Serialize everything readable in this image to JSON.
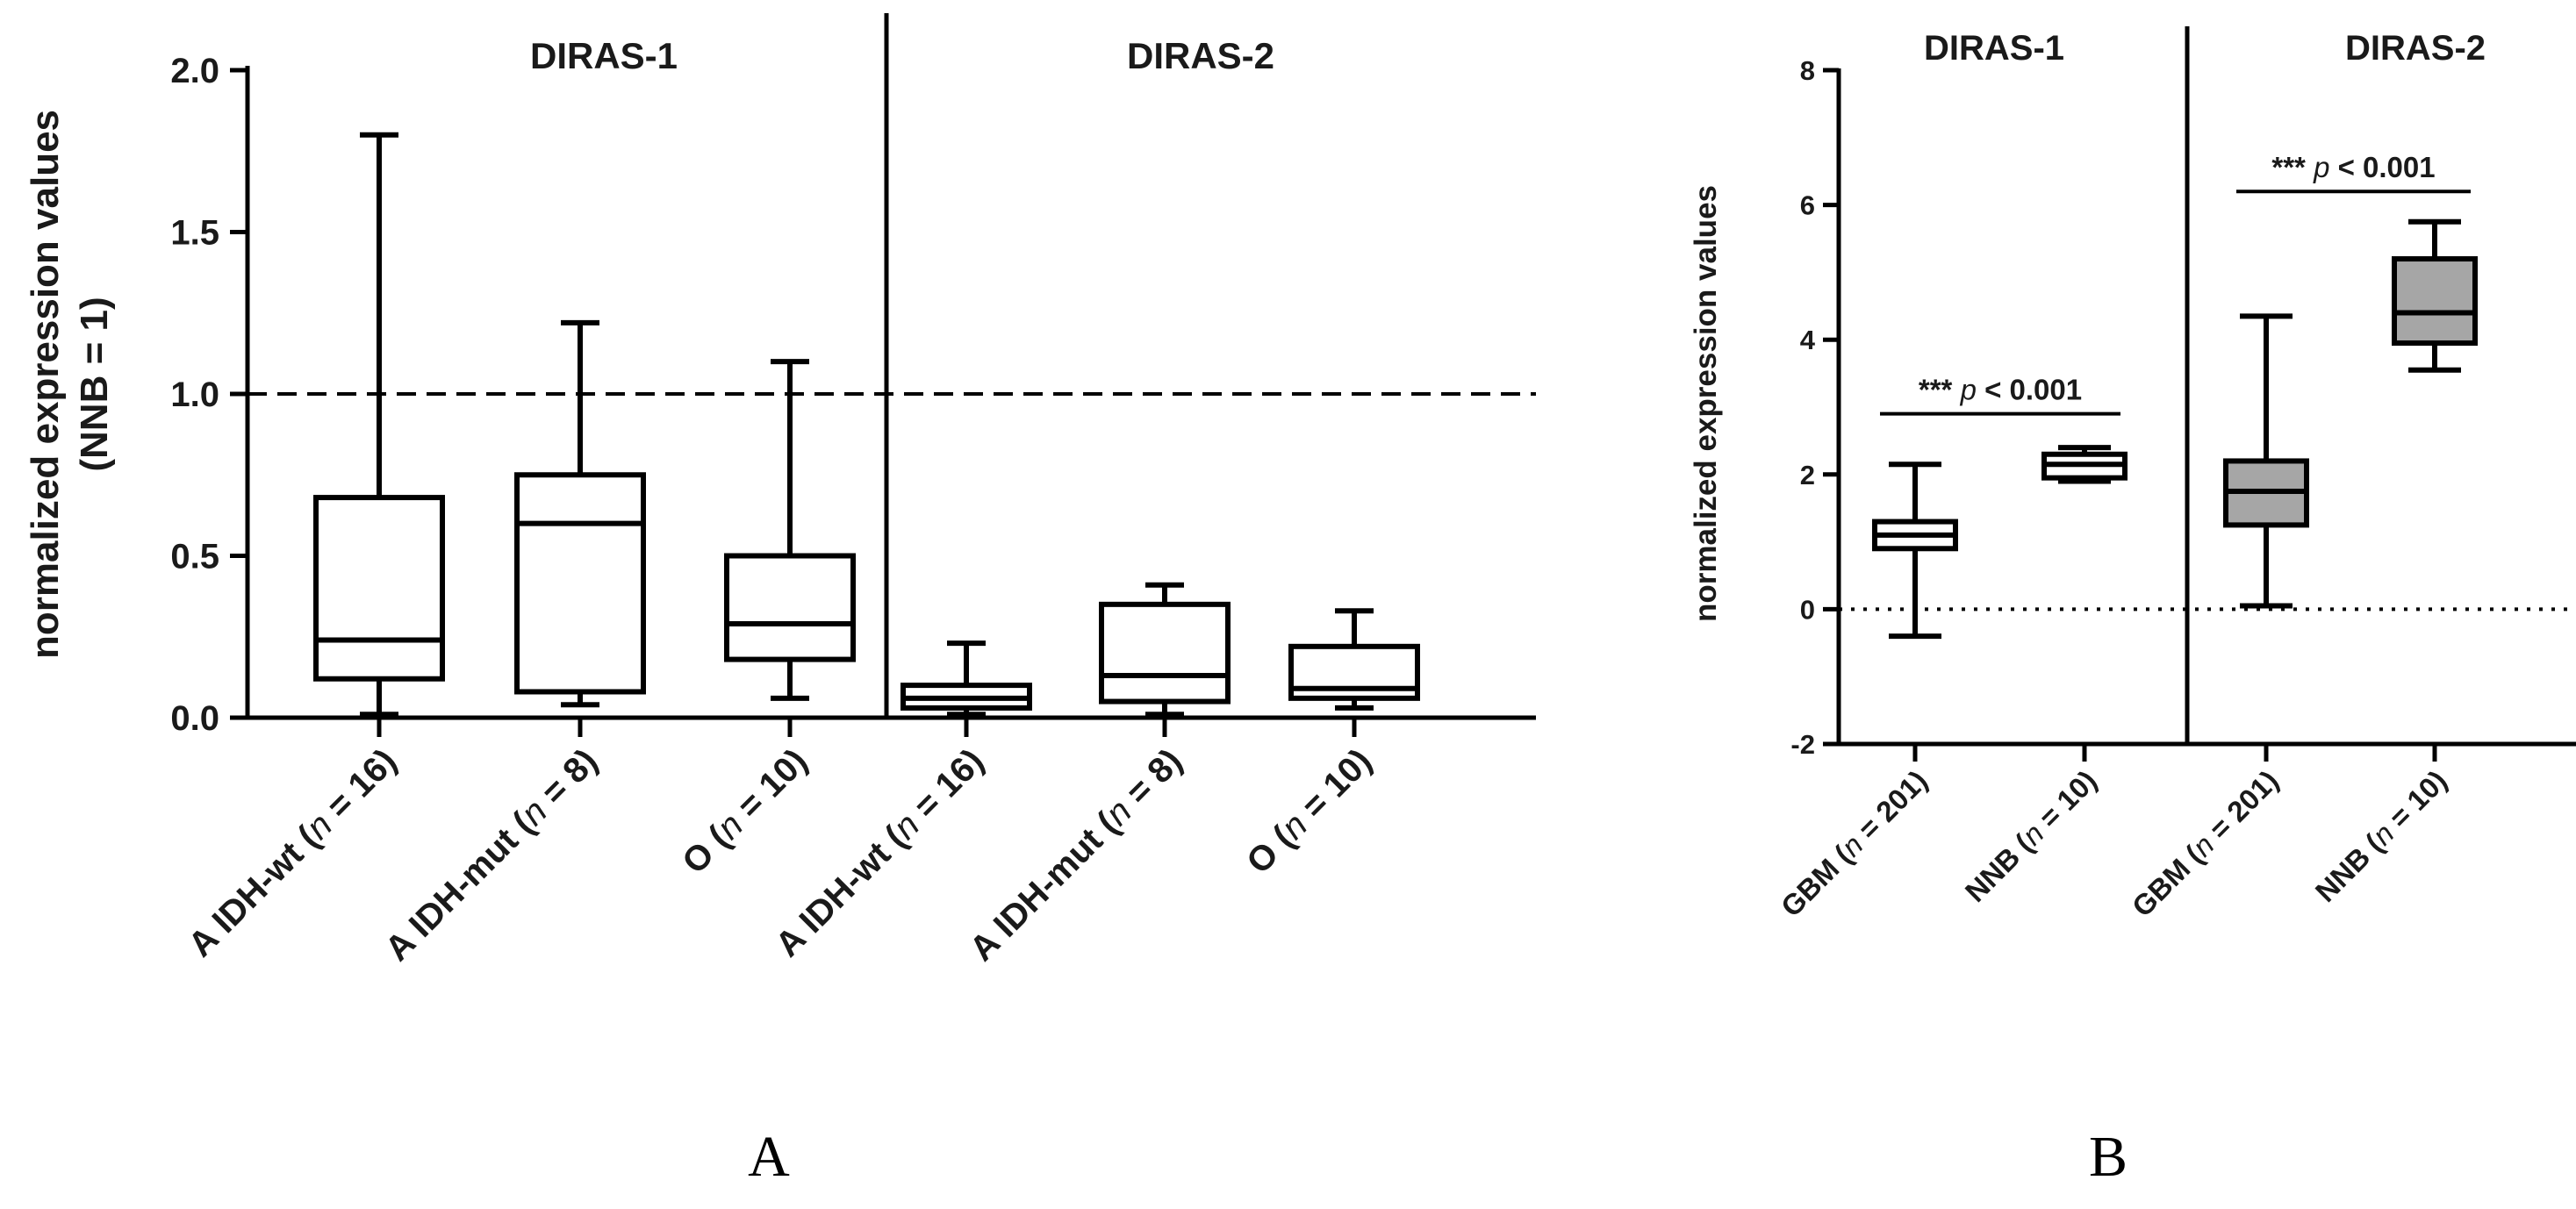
{
  "chart_data": [
    {
      "type": "box",
      "panel": "A",
      "ylabel_line1": "normalized expression values",
      "ylabel_line2": "(NNB = 1)",
      "ylim": [
        0,
        2.0
      ],
      "yticks": [
        "0.0",
        "0.5",
        "1.0",
        "1.5",
        "2.0"
      ],
      "ytick_values": [
        0,
        0.5,
        1.0,
        1.5,
        2.0
      ],
      "reference_line": 1.0,
      "groups": [
        "DIRAS-1",
        "DIRAS-2"
      ],
      "categories": [
        {
          "pre": "A IDH-wt (",
          "n": "n",
          "post": " = 16)"
        },
        {
          "pre": "A IDH-mut (",
          "n": "n",
          "post": " = 8)"
        },
        {
          "pre": "O (",
          "n": "n",
          "post": " = 10)"
        },
        {
          "pre": "A IDH-wt (",
          "n": "n",
          "post": " = 16)"
        },
        {
          "pre": "A IDH-mut (",
          "n": "n",
          "post": " = 8)"
        },
        {
          "pre": "O (",
          "n": "n",
          "post": " = 10)"
        }
      ],
      "boxes": [
        {
          "group": "DIRAS-1",
          "min": 0.01,
          "q1": 0.12,
          "median": 0.24,
          "q3": 0.68,
          "max": 1.8
        },
        {
          "group": "DIRAS-1",
          "min": 0.04,
          "q1": 0.08,
          "median": 0.6,
          "q3": 0.75,
          "max": 1.22
        },
        {
          "group": "DIRAS-1",
          "min": 0.06,
          "q1": 0.18,
          "median": 0.29,
          "q3": 0.5,
          "max": 1.1
        },
        {
          "group": "DIRAS-2",
          "min": 0.01,
          "q1": 0.03,
          "median": 0.06,
          "q3": 0.1,
          "max": 0.23
        },
        {
          "group": "DIRAS-2",
          "min": 0.01,
          "q1": 0.05,
          "median": 0.13,
          "q3": 0.35,
          "max": 0.41
        },
        {
          "group": "DIRAS-2",
          "min": 0.03,
          "q1": 0.06,
          "median": 0.09,
          "q3": 0.22,
          "max": 0.33
        }
      ]
    },
    {
      "type": "box",
      "panel": "B",
      "ylabel": "normalized expression values",
      "ylim": [
        -2,
        8
      ],
      "yticks": [
        "-2",
        "0",
        "2",
        "4",
        "6",
        "8"
      ],
      "ytick_values": [
        -2,
        0,
        2,
        4,
        6,
        8
      ],
      "reference_line": 0,
      "groups": [
        "DIRAS-1",
        "DIRAS-2"
      ],
      "categories": [
        {
          "pre": "GBM (",
          "n": "n",
          "post": " = 201)"
        },
        {
          "pre": "NNB (",
          "n": "n",
          "post": " = 10)"
        },
        {
          "pre": "GBM (",
          "n": "n",
          "post": " = 201)"
        },
        {
          "pre": "NNB (",
          "n": "n",
          "post": " = 10)"
        }
      ],
      "boxes": [
        {
          "group": "DIRAS-1",
          "min": -0.4,
          "q1": 0.9,
          "median": 1.1,
          "q3": 1.3,
          "max": 2.15,
          "fill": "#ffffff"
        },
        {
          "group": "DIRAS-1",
          "min": 1.9,
          "q1": 1.95,
          "median": 2.15,
          "q3": 2.3,
          "max": 2.4,
          "fill": "#ffffff"
        },
        {
          "group": "DIRAS-2",
          "min": 0.05,
          "q1": 1.25,
          "median": 1.75,
          "q3": 2.2,
          "max": 4.35,
          "fill": "#a6a6a6"
        },
        {
          "group": "DIRAS-2",
          "min": 3.55,
          "q1": 3.95,
          "median": 4.4,
          "q3": 5.2,
          "max": 5.75,
          "fill": "#a6a6a6"
        }
      ],
      "annotations": [
        {
          "stars": "***",
          "p": "p",
          "rest": " < 0.001",
          "group": "DIRAS-1",
          "y": 2.9
        },
        {
          "stars": "***",
          "p": "p",
          "rest": " < 0.001",
          "group": "DIRAS-2",
          "y": 6.2
        }
      ]
    }
  ],
  "panel_labels": [
    "A",
    "B"
  ],
  "colors": {
    "line": "#000000",
    "gray_fill": "#a6a6a6"
  }
}
